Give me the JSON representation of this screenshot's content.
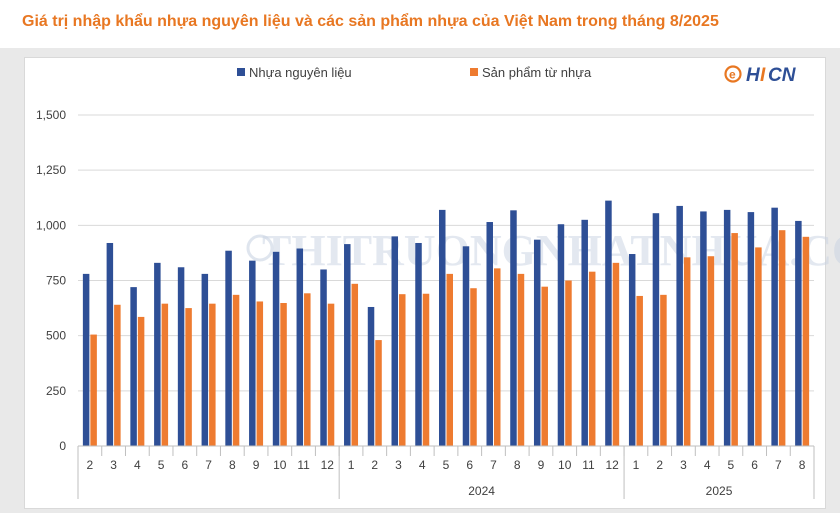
{
  "title": "Giá trị nhập khẩu nhựa nguyên liệu và các sản phẩm nhựa của Việt Nam trong tháng 8/2025",
  "logo": {
    "mark": "e",
    "letters_blue": "H",
    "letters_orange": "I",
    "letters_blue2": "CN"
  },
  "watermark": "THITRUONGNHATNHUA.COM",
  "colors": {
    "series1": "#2e4f96",
    "series2": "#ee7b30",
    "title": "#e87722",
    "grid": "#d9d9d9"
  },
  "chart_data": {
    "type": "bar",
    "ylim": [
      0,
      1500
    ],
    "yticks": [
      "0",
      "250",
      "500",
      "750",
      "1,000",
      "1,250",
      "1,500"
    ],
    "categories": [
      "2",
      "3",
      "4",
      "5",
      "6",
      "7",
      "8",
      "9",
      "10",
      "11",
      "12",
      "1",
      "2",
      "3",
      "4",
      "5",
      "6",
      "7",
      "8",
      "9",
      "10",
      "11",
      "12",
      "1",
      "2",
      "3",
      "4",
      "5",
      "6",
      "7",
      "8"
    ],
    "groups": [
      {
        "label": "",
        "start": 0,
        "end": 10
      },
      {
        "label": "2024",
        "start": 11,
        "end": 22
      },
      {
        "label": "2025",
        "start": 23,
        "end": 30
      }
    ],
    "legend_position": "top",
    "series": [
      {
        "name": "Nhựa nguyên liệu",
        "values": [
          780,
          920,
          720,
          830,
          810,
          780,
          885,
          840,
          880,
          895,
          800,
          915,
          630,
          950,
          920,
          1070,
          905,
          1015,
          1068,
          935,
          1005,
          1025,
          1112,
          870,
          1055,
          1088,
          1063,
          1070,
          1060,
          1080,
          1020
        ]
      },
      {
        "name": "Sản phẩm từ nhựa",
        "values": [
          505,
          640,
          585,
          645,
          625,
          645,
          685,
          655,
          648,
          692,
          645,
          735,
          480,
          688,
          690,
          780,
          715,
          805,
          780,
          722,
          750,
          790,
          830,
          680,
          685,
          855,
          860,
          965,
          900,
          978,
          948
        ]
      }
    ]
  }
}
